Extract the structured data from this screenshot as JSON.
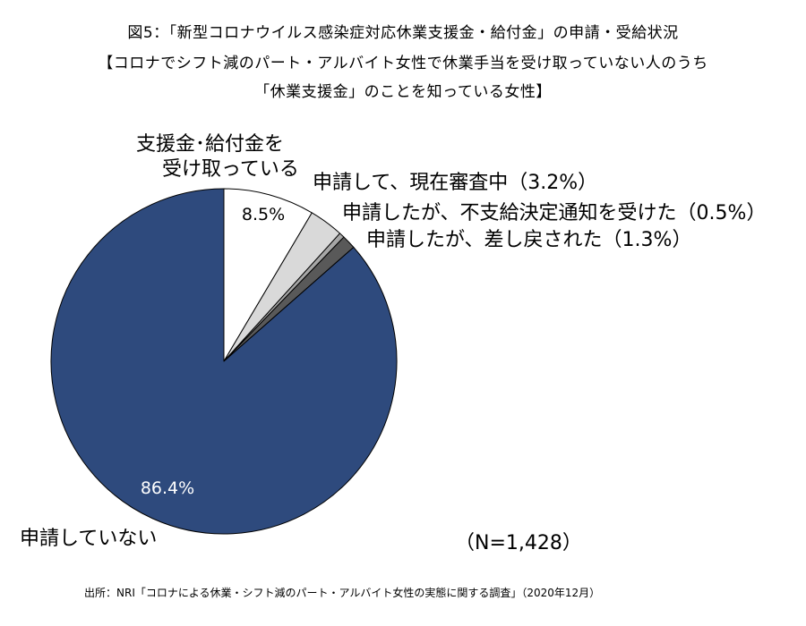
{
  "header": {
    "title_line1": "図5：「新型コロナウイルス感染症対応休業支援金・給付金」の申請・受給状況",
    "title_line2": "【コロナでシフト減のパート・アルバイト女性で休業手当を受け取っていない人のうち",
    "title_line3": "「休業支援金」のことを知っている女性】"
  },
  "annotations": {
    "received_line1": "支援金･給付金を",
    "received_line2": "受け取っている",
    "pending": "申請して、現在審査中（3.2%）",
    "rejected": "申請したが、不支給決定通知を受けた（0.5%）",
    "returned": "申請したが、差し戻された（1.3%）",
    "not_applied": "申請していない",
    "n": "（N=1,428）"
  },
  "footer": {
    "source": "出所：NRI「コロナによる休業・シフト減のパート・アルバイト女性の実態に関する調査」（2020年12月）"
  },
  "chart_data": {
    "type": "pie",
    "title": "図5：「新型コロナウイルス感染症対応休業支援金・給付金」の申請・受給状況",
    "n": 1428,
    "start": "12 o'clock",
    "direction": "clockwise",
    "slices": [
      {
        "label": "支援金･給付金を受け取っている",
        "value": 8.5,
        "pct_label": "8.5%",
        "color": "#ffffff",
        "label_color": "#000000"
      },
      {
        "label": "申請して、現在審査中",
        "value": 3.2,
        "pct_label": "",
        "color": "#d9d9d9",
        "label_color": "#000000"
      },
      {
        "label": "申請したが、不支給決定通知を受けた",
        "value": 0.5,
        "pct_label": "",
        "color": "#a6a6a6",
        "label_color": "#000000"
      },
      {
        "label": "申請したが、差し戻された",
        "value": 1.3,
        "pct_label": "",
        "color": "#595959",
        "label_color": "#000000"
      },
      {
        "label": "申請していない",
        "value": 86.4,
        "pct_label": "86.4%",
        "color": "#2e4a7d",
        "label_color": "#ffffff"
      }
    ]
  }
}
